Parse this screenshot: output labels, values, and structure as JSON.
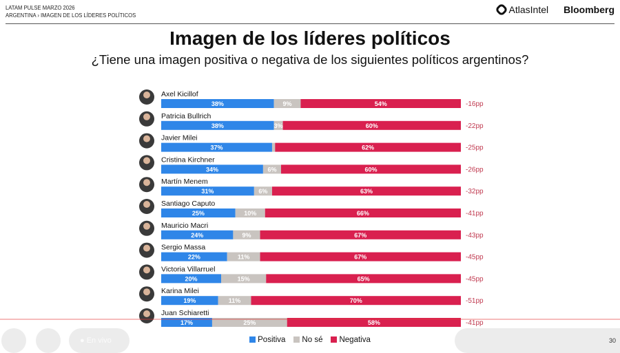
{
  "header": {
    "line1": "LATAM PULSE MARZO 2026",
    "line2": "ARGENTINA › IMAGEN DE LOS LÍDERES POLÍTICOS"
  },
  "logos": {
    "atlas": "AtlasIntel",
    "bloomberg": "Bloomberg"
  },
  "player": {
    "live_label": "● En vivo",
    "page_number": "30"
  },
  "chart_data": {
    "type": "bar",
    "orientation": "horizontal-stacked-100",
    "title": "Imagen de los líderes políticos",
    "subtitle": "¿Tiene una imagen positiva o negativa de los siguientes políticos argentinos?",
    "categories": [
      "Axel Kicillof",
      "Patricia Bullrich",
      "Javier Milei",
      "Cristina Kirchner",
      "Martín Menem",
      "Santiago Caputo",
      "Mauricio Macri",
      "Sergio Massa",
      "Victoria Villarruel",
      "Karina Milei",
      "Juan Schiaretti"
    ],
    "series": [
      {
        "name": "Positiva",
        "color": "#2f86e8",
        "values": [
          38,
          38,
          37,
          34,
          31,
          25,
          24,
          22,
          20,
          19,
          17
        ]
      },
      {
        "name": "No sé",
        "color": "#c9c4c0",
        "values": [
          9,
          3,
          1,
          6,
          6,
          10,
          9,
          11,
          15,
          11,
          25
        ]
      },
      {
        "name": "Negativa",
        "color": "#d9204f",
        "values": [
          54,
          60,
          62,
          60,
          63,
          66,
          67,
          67,
          65,
          70,
          58
        ]
      }
    ],
    "net_labels": [
      "-16pp",
      "-22pp",
      "-25pp",
      "-26pp",
      "-32pp",
      "-41pp",
      "-43pp",
      "-45pp",
      "-45pp",
      "-51pp",
      "-41pp"
    ],
    "net_color": "#c0394f",
    "legend_position": "bottom",
    "grid": false
  }
}
